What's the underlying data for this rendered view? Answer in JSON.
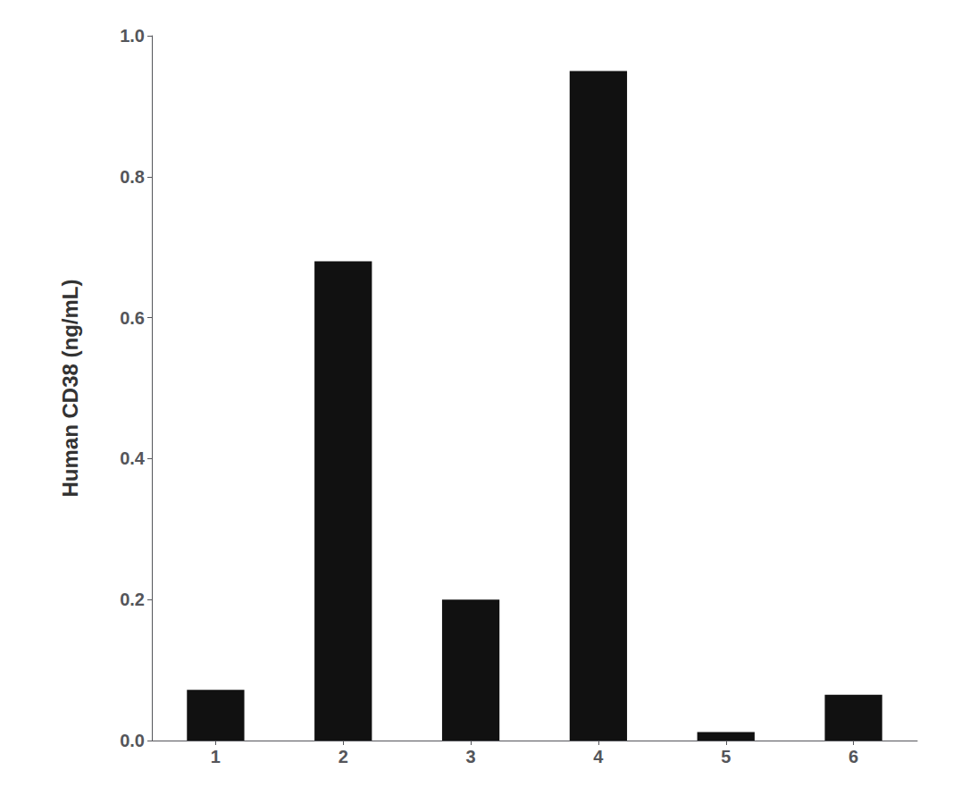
{
  "chart_data": {
    "type": "bar",
    "categories": [
      "1",
      "2",
      "3",
      "4",
      "5",
      "6"
    ],
    "values": [
      0.072,
      0.68,
      0.2,
      0.95,
      0.012,
      0.065
    ],
    "color": "#111111",
    "ylabel": "Human CD38 (ng/mL)",
    "ylim": [
      0,
      1.0
    ],
    "yticks": [
      {
        "value": 0.0,
        "label": "0.0"
      },
      0.2,
      0.4,
      0.6,
      0.8,
      {
        "value": 1.0,
        "label": "1.0"
      }
    ],
    "grid": false
  }
}
